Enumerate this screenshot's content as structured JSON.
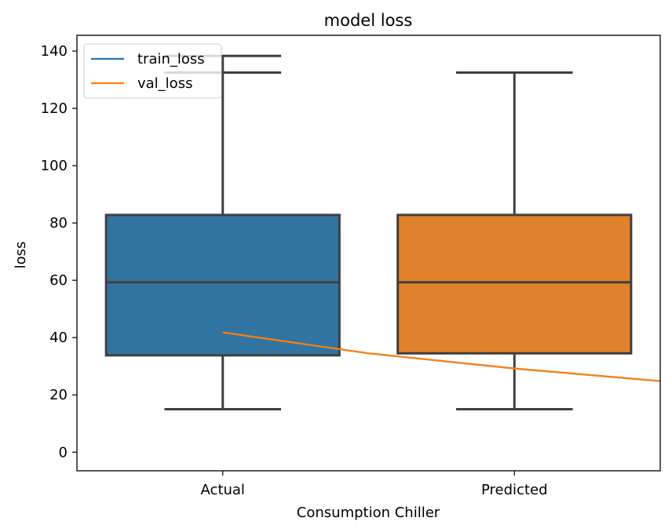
{
  "chart_data": {
    "type": "box",
    "title": "model loss",
    "xlabel": "Consumption Chiller",
    "ylabel": "loss",
    "categories": [
      "Actual",
      "Predicted"
    ],
    "ylim": [
      -6.5,
      145.5
    ],
    "yticks": [
      0,
      20,
      40,
      60,
      80,
      100,
      120,
      140
    ],
    "grid": false,
    "boxes": [
      {
        "category": "Actual",
        "whisker_low": 15,
        "q1": 33.8,
        "median": 59.3,
        "q3": 82.8,
        "whisker_high": 138.3,
        "extra_cap": 132.5,
        "color": "#3274a1"
      },
      {
        "category": "Predicted",
        "whisker_low": 15,
        "q1": 34.5,
        "median": 59.3,
        "q3": 82.8,
        "whisker_high": 132.5,
        "color": "#e1812c"
      }
    ],
    "series": [
      {
        "name": "train_loss",
        "color": "#1f77b4",
        "x": [
          0,
          0.5,
          1,
          1.5
        ],
        "values": [
          41.8,
          34.5,
          29.2,
          24.8
        ]
      },
      {
        "name": "val_loss",
        "color": "#ff7f0e",
        "x": [
          0,
          0.5,
          1,
          1.5
        ],
        "values": [
          41.8,
          34.5,
          29.2,
          24.8
        ]
      }
    ],
    "legend": {
      "position": "top-left",
      "entries": [
        "train_loss",
        "val_loss"
      ]
    }
  }
}
